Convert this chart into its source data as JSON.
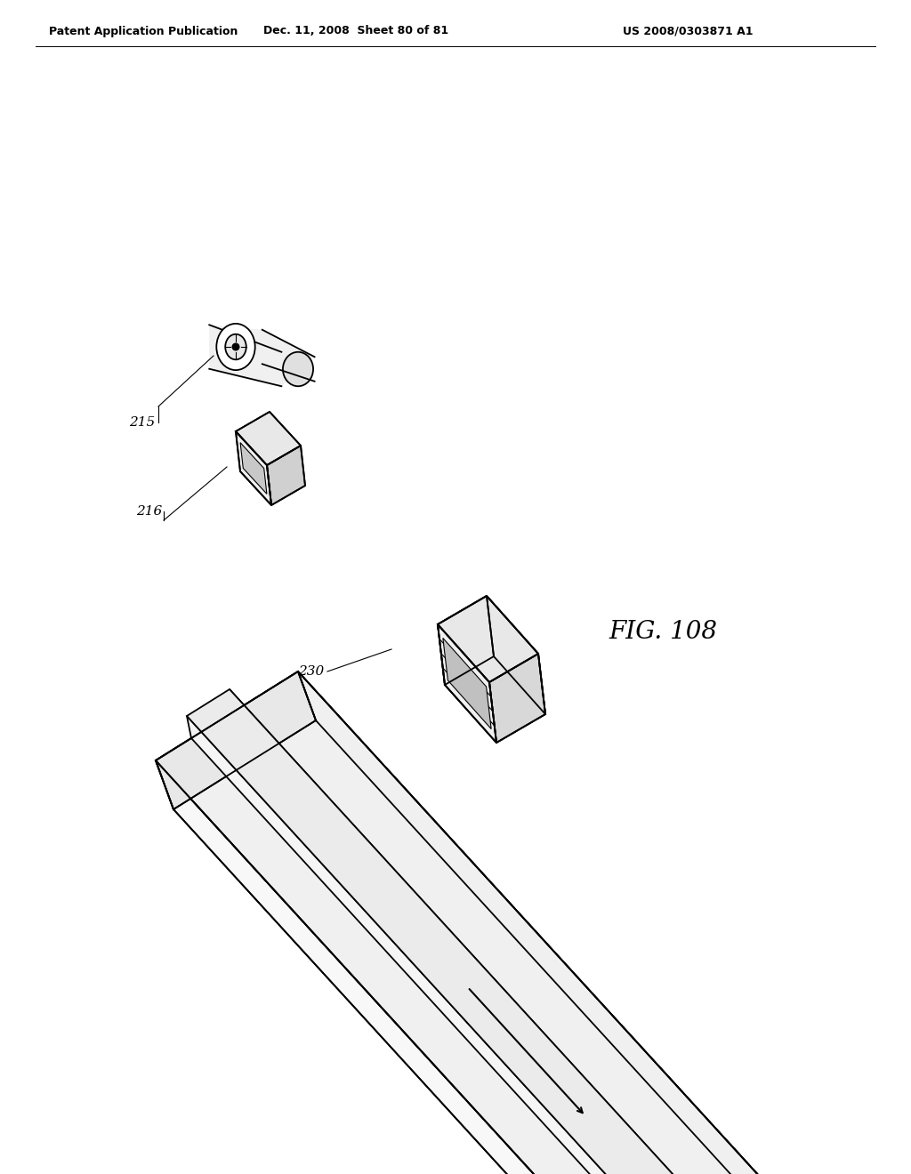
{
  "header_left": "Patent Application Publication",
  "header_center": "Dec. 11, 2008  Sheet 80 of 81",
  "header_right": "US 2008/0303871 A1",
  "background_color": "#ffffff",
  "line_color": "#000000",
  "label_215": "215",
  "label_216": "216",
  "label_230": "230",
  "fig_label": "FIG. 108",
  "lw_main": 1.3,
  "lw_thin": 0.8
}
